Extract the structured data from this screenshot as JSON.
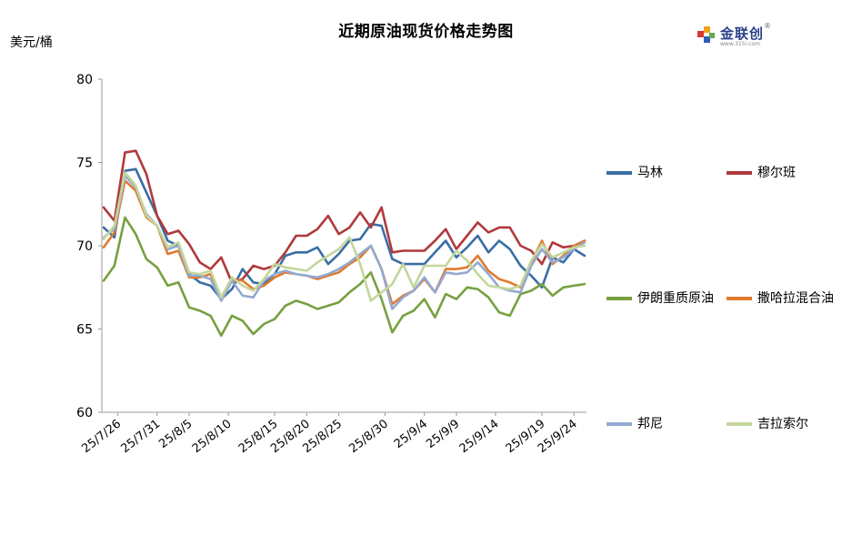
{
  "title": "近期原油现货价格走势图",
  "unit_label": "美元/桶",
  "logo": {
    "brand": "金联创",
    "sub": "www.315i.com",
    "reg": "®"
  },
  "chart_data": {
    "type": "line",
    "ylim": [
      60,
      80
    ],
    "yticks": [
      60,
      65,
      70,
      75,
      80
    ],
    "grid": false,
    "legend_position": "right",
    "x_dates": [
      "25/7/24",
      "25/7/25",
      "25/7/28",
      "25/7/29",
      "25/7/30",
      "25/7/31",
      "25/8/1",
      "25/8/4",
      "25/8/5",
      "25/8/6",
      "25/8/7",
      "25/8/8",
      "25/8/11",
      "25/8/12",
      "25/8/13",
      "25/8/14",
      "25/8/15",
      "25/8/18",
      "25/8/19",
      "25/8/20",
      "25/8/21",
      "25/8/22",
      "25/8/25",
      "25/8/26",
      "25/8/27",
      "25/8/28",
      "25/8/29",
      "25/9/1",
      "25/9/2",
      "25/9/3",
      "25/9/4",
      "25/9/5",
      "25/9/8",
      "25/9/9",
      "25/9/10",
      "25/9/11",
      "25/9/12",
      "25/9/15",
      "25/9/16",
      "25/9/17",
      "25/9/18",
      "25/9/19",
      "25/9/22",
      "25/9/23",
      "25/9/24",
      "25/9/25"
    ],
    "x_tick_labels": [
      "25/7/26",
      "25/7/31",
      "25/8/5",
      "25/8/10",
      "25/8/15",
      "25/8/20",
      "25/8/25",
      "25/8/30",
      "25/9/4",
      "25/9/9",
      "25/9/14",
      "25/9/19",
      "25/9/24"
    ],
    "series": [
      {
        "name": "马林",
        "color": "#3a6ea5",
        "values": [
          71.1,
          70.5,
          74.5,
          74.6,
          73.2,
          71.8,
          70.3,
          70.0,
          68.3,
          67.8,
          67.6,
          66.8,
          67.4,
          68.6,
          67.8,
          67.7,
          68.3,
          69.4,
          69.6,
          69.6,
          69.9,
          68.9,
          69.5,
          70.3,
          70.4,
          71.3,
          71.2,
          69.2,
          68.9,
          68.9,
          68.9,
          69.6,
          70.3,
          69.3,
          69.9,
          70.6,
          69.6,
          70.3,
          69.8,
          68.8,
          68.2,
          67.5,
          69.3,
          69.0,
          69.8,
          69.4
        ]
      },
      {
        "name": "穆尔班",
        "color": "#b0393b",
        "values": [
          72.3,
          71.5,
          75.6,
          75.7,
          74.3,
          71.8,
          70.7,
          70.9,
          70.1,
          69.0,
          68.6,
          69.3,
          67.8,
          68.0,
          68.8,
          68.6,
          68.8,
          69.6,
          70.6,
          70.6,
          71.0,
          71.8,
          70.7,
          71.1,
          72.0,
          71.1,
          72.3,
          69.6,
          69.7,
          69.7,
          69.7,
          70.3,
          71.0,
          69.8,
          70.6,
          71.4,
          70.8,
          71.1,
          71.1,
          70.0,
          69.7,
          68.9,
          70.2,
          69.9,
          70.0,
          70.3
        ]
      },
      {
        "name": "伊朗重质原油",
        "color": "#77a040",
        "values": [
          67.9,
          68.8,
          71.7,
          70.7,
          69.2,
          68.7,
          67.6,
          67.8,
          66.3,
          66.1,
          65.8,
          64.6,
          65.8,
          65.5,
          64.7,
          65.3,
          65.6,
          66.4,
          66.7,
          66.5,
          66.2,
          66.4,
          66.6,
          67.2,
          67.7,
          68.4,
          66.8,
          64.8,
          65.8,
          66.1,
          66.8,
          65.7,
          67.1,
          66.8,
          67.5,
          67.4,
          66.9,
          66.0,
          65.8,
          67.1,
          67.3,
          67.7,
          67.0,
          67.5,
          67.6,
          67.7
        ]
      },
      {
        "name": "撒哈拉混合油",
        "color": "#e07b2e",
        "values": [
          69.9,
          70.8,
          73.9,
          73.3,
          71.7,
          71.2,
          69.5,
          69.7,
          68.1,
          68.1,
          68.3,
          66.8,
          68.0,
          67.9,
          67.4,
          67.6,
          68.1,
          68.4,
          68.3,
          68.2,
          68.0,
          68.2,
          68.4,
          68.9,
          69.3,
          70.0,
          68.6,
          66.5,
          67.0,
          67.3,
          68.0,
          67.2,
          68.6,
          68.6,
          68.7,
          69.4,
          68.5,
          68.0,
          67.8,
          67.5,
          69.0,
          70.3,
          68.9,
          69.4,
          70.0,
          70.3
        ]
      },
      {
        "name": "邦尼",
        "color": "#93a9d1",
        "values": [
          70.5,
          71.0,
          74.2,
          73.5,
          71.9,
          71.2,
          69.8,
          70.0,
          68.2,
          68.2,
          68.0,
          66.7,
          67.9,
          67.0,
          66.9,
          67.9,
          68.3,
          68.5,
          68.3,
          68.2,
          68.1,
          68.3,
          68.6,
          69.0,
          69.5,
          70.0,
          68.6,
          66.2,
          66.9,
          67.3,
          68.1,
          67.2,
          68.4,
          68.3,
          68.4,
          69.0,
          68.3,
          67.5,
          67.3,
          67.2,
          68.8,
          69.8,
          69.0,
          69.3,
          69.8,
          70.2
        ]
      },
      {
        "name": "吉拉索尔",
        "color": "#c3d69b",
        "values": [
          70.4,
          71.2,
          74.4,
          73.6,
          71.8,
          71.2,
          69.9,
          70.2,
          68.4,
          68.3,
          68.5,
          66.9,
          68.1,
          67.6,
          67.3,
          68.0,
          68.9,
          68.7,
          68.6,
          68.5,
          69.0,
          69.4,
          69.8,
          70.5,
          68.9,
          66.7,
          67.2,
          67.7,
          68.9,
          67.5,
          68.8,
          68.8,
          68.8,
          69.7,
          69.1,
          68.3,
          67.6,
          67.5,
          67.4,
          67.6,
          69.1,
          70.1,
          69.3,
          69.6,
          69.9,
          70.0
        ]
      }
    ]
  }
}
